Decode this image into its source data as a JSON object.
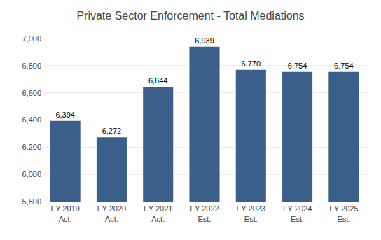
{
  "chart_data": {
    "type": "bar",
    "title": "Private Sector Enforcement - Total Mediations",
    "categories": [
      "FY 2019\nAct.",
      "FY 2020\nAct.",
      "FY 2021\nAct.",
      "FY 2022\nEst.",
      "FY 2023\nEst.",
      "FY 2024\nEst.",
      "FY 2025\nEst."
    ],
    "values": [
      6394,
      6272,
      6644,
      6939,
      6770,
      6754,
      6754
    ],
    "value_labels": [
      "6,394",
      "6,272",
      "6,644",
      "6,939",
      "6,770",
      "6,754",
      "6,754"
    ],
    "color": "#3A5F8A",
    "ylim": [
      5800,
      7000
    ],
    "yticks": [
      {
        "value": 5800,
        "label": "5,800"
      },
      {
        "value": 6000,
        "label": "6,000"
      },
      {
        "value": 6200,
        "label": "6,200"
      },
      {
        "value": 6400,
        "label": "6,400"
      },
      {
        "value": 6600,
        "label": "6,600"
      },
      {
        "value": 6800,
        "label": "6,800"
      },
      {
        "value": 7000,
        "label": "7,000"
      }
    ],
    "grid": true,
    "data_labels": true
  }
}
